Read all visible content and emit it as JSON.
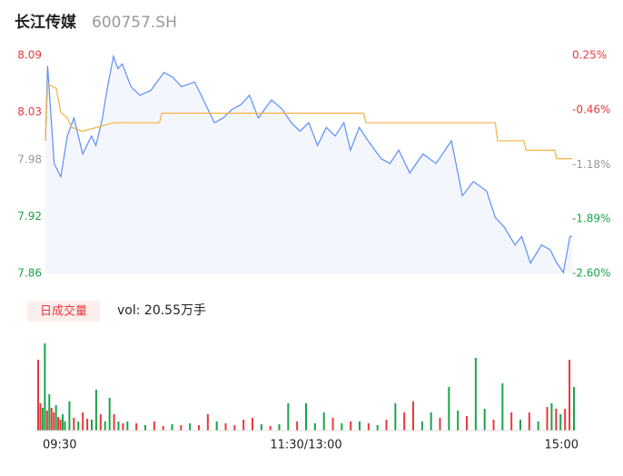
{
  "chart_data": {
    "type": "line",
    "title": "长江传媒",
    "subtitle": "600757.SH",
    "volume_label": "日成交量",
    "volume_text": "vol: 20.55万手",
    "xlim": [
      0,
      240
    ],
    "xticks": [
      {
        "value": 0,
        "label": "09:30"
      },
      {
        "value": 120,
        "label": "11:30/13:00"
      },
      {
        "value": 240,
        "label": "15:00"
      }
    ],
    "ylim": [
      7.86,
      8.09
    ],
    "yticks": [
      8.09,
      8.03,
      7.98,
      7.92,
      7.86
    ],
    "ytick_colors": [
      "#e8393a",
      "#e8393a",
      "#999999",
      "#1aa34a",
      "#1aa34a"
    ],
    "y2lim": [
      -2.6,
      0.25
    ],
    "y2ticks": [
      {
        "value": 0.25,
        "label": "0.25%"
      },
      {
        "value": -0.46,
        "label": "-0.46%"
      },
      {
        "value": -1.18,
        "label": "-1.18%"
      },
      {
        "value": -1.89,
        "label": "-1.89%"
      },
      {
        "value": -2.6,
        "label": "-2.60%"
      }
    ],
    "series": [
      {
        "name": "price",
        "color": "#5b8ff9",
        "x": [
          0,
          1,
          4,
          7,
          10,
          13,
          17,
          21,
          23,
          26,
          28,
          31,
          33,
          35,
          39,
          43,
          48,
          54,
          58,
          62,
          68,
          72,
          77,
          81,
          85,
          89,
          93,
          97,
          103,
          108,
          112,
          116,
          120,
          124,
          128,
          132,
          136,
          139,
          143,
          147,
          153,
          157,
          161,
          166,
          172,
          178,
          185,
          190,
          195,
          201,
          205,
          209,
          214,
          217,
          221,
          226,
          230,
          233,
          236,
          239,
          240
        ],
        "values": [
          8.0,
          8.079,
          7.976,
          7.962,
          8.005,
          8.024,
          7.986,
          8.005,
          7.995,
          8.024,
          8.053,
          8.089,
          8.076,
          8.081,
          8.057,
          8.048,
          8.053,
          8.072,
          8.067,
          8.057,
          8.062,
          8.043,
          8.019,
          8.024,
          8.033,
          8.038,
          8.048,
          8.024,
          8.043,
          8.033,
          8.019,
          8.01,
          8.019,
          7.995,
          8.014,
          8.005,
          8.019,
          7.99,
          8.014,
          8.0,
          7.981,
          7.976,
          7.99,
          7.966,
          7.986,
          7.976,
          8.0,
          7.942,
          7.957,
          7.947,
          7.919,
          7.909,
          7.89,
          7.899,
          7.871,
          7.89,
          7.885,
          7.871,
          7.861,
          7.899,
          7.899
        ]
      },
      {
        "name": "average",
        "color": "#f5b041",
        "x": [
          0,
          1,
          5,
          7,
          10,
          12,
          17,
          31,
          52,
          53,
          145,
          146,
          205,
          206,
          218,
          219,
          232,
          233,
          240
        ],
        "values": [
          8.0,
          8.06,
          8.055,
          8.03,
          8.024,
          8.014,
          8.01,
          8.019,
          8.019,
          8.029,
          8.029,
          8.019,
          8.019,
          8.0,
          8.0,
          7.99,
          7.99,
          7.981,
          7.981
        ]
      }
    ],
    "volume": {
      "ylim": [
        0,
        100
      ],
      "x": [
        0,
        1,
        2,
        3,
        4,
        5,
        6,
        7,
        8,
        9,
        10,
        11,
        12,
        14,
        16,
        18,
        20,
        22,
        24,
        26,
        28,
        30,
        32,
        34,
        36,
        38,
        40,
        44,
        48,
        52,
        56,
        60,
        64,
        68,
        72,
        76,
        80,
        84,
        88,
        92,
        96,
        100,
        104,
        108,
        112,
        116,
        120,
        124,
        128,
        132,
        136,
        140,
        144,
        148,
        152,
        156,
        160,
        164,
        168,
        172,
        176,
        180,
        184,
        188,
        192,
        196,
        200,
        204,
        208,
        212,
        216,
        220,
        224,
        228,
        230,
        232,
        234,
        236,
        238,
        240
      ],
      "values": [
        78,
        30,
        25,
        96,
        22,
        40,
        25,
        20,
        28,
        15,
        12,
        18,
        10,
        32,
        14,
        10,
        20,
        13,
        12,
        45,
        18,
        10,
        36,
        18,
        10,
        8,
        10,
        8,
        6,
        10,
        5,
        7,
        6,
        8,
        6,
        18,
        10,
        8,
        6,
        12,
        14,
        7,
        5,
        7,
        30,
        10,
        30,
        8,
        20,
        14,
        8,
        10,
        10,
        8,
        6,
        12,
        30,
        20,
        32,
        10,
        20,
        14,
        48,
        22,
        16,
        80,
        24,
        12,
        52,
        20,
        12,
        20,
        10,
        26,
        30,
        24,
        18,
        24,
        78,
        48
      ],
      "colors": [
        "#e8393a",
        "#e8393a",
        "#1aa34a",
        "#1aa34a",
        "#e8393a",
        "#1aa34a",
        "#e8393a",
        "#e8393a",
        "#1aa34a",
        "#e8393a",
        "#e8393a",
        "#1aa34a",
        "#1aa34a",
        "#1aa34a",
        "#e8393a",
        "#1aa34a",
        "#e8393a",
        "#e8393a",
        "#1aa34a",
        "#1aa34a",
        "#e8393a",
        "#1aa34a",
        "#1aa34a",
        "#e8393a",
        "#1aa34a",
        "#e8393a",
        "#1aa34a",
        "#e8393a",
        "#1aa34a",
        "#e8393a",
        "#e8393a",
        "#1aa34a",
        "#e8393a",
        "#1aa34a",
        "#e8393a",
        "#e8393a",
        "#1aa34a",
        "#e8393a",
        "#e8393a",
        "#e8393a",
        "#e8393a",
        "#1aa34a",
        "#e8393a",
        "#1aa34a",
        "#1aa34a",
        "#e8393a",
        "#1aa34a",
        "#1aa34a",
        "#1aa34a",
        "#e8393a",
        "#1aa34a",
        "#e8393a",
        "#1aa34a",
        "#e8393a",
        "#1aa34a",
        "#e8393a",
        "#1aa34a",
        "#e8393a",
        "#e8393a",
        "#1aa34a",
        "#1aa34a",
        "#e8393a",
        "#1aa34a",
        "#1aa34a",
        "#e8393a",
        "#1aa34a",
        "#1aa34a",
        "#e8393a",
        "#1aa34a",
        "#e8393a",
        "#1aa34a",
        "#e8393a",
        "#1aa34a",
        "#e8393a",
        "#1aa34a",
        "#e8393a",
        "#1aa34a",
        "#e8393a",
        "#e8393a",
        "#1aa34a"
      ]
    }
  }
}
